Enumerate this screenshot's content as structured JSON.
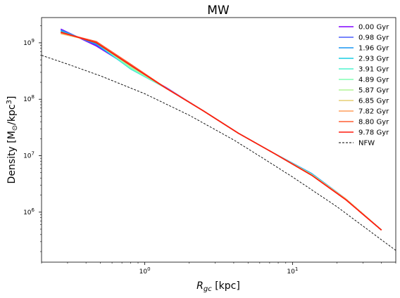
{
  "chart_data": {
    "type": "line",
    "title": "MW",
    "xlabel_main": "R",
    "xlabel_sub": "gc",
    "xlabel_unit": " [kpc]",
    "ylabel_main": "Density [M",
    "ylabel_sun": "⊙",
    "ylabel_mid": "/kpc",
    "ylabel_exp": "3",
    "ylabel_end": "]",
    "xscale": "log",
    "yscale": "log",
    "xlim": [
      0.2,
      50
    ],
    "ylim": [
      130000,
      2800000000
    ],
    "x_ticks": [
      {
        "value": 1,
        "base": "10",
        "exp": "0"
      },
      {
        "value": 10,
        "base": "10",
        "exp": "1"
      }
    ],
    "y_ticks": [
      {
        "value": 1000000,
        "base": "10",
        "exp": "6"
      },
      {
        "value": 10000000,
        "base": "10",
        "exp": "7"
      },
      {
        "value": 100000000,
        "base": "10",
        "exp": "8"
      },
      {
        "value": 1000000000,
        "base": "10",
        "exp": "9"
      }
    ],
    "legend_position": "top-right",
    "grid": false,
    "series": [
      {
        "name": "0.00 Gyr",
        "color": "#8000ff",
        "dash": "",
        "x": [
          0.27,
          0.47,
          0.8,
          1.4,
          2.5,
          4.3,
          7.5,
          13.5,
          23,
          40
        ],
        "y": [
          1750000000,
          880000000,
          370000000,
          160000000,
          62000000,
          25000000,
          11000000,
          4800000,
          1700000,
          480000
        ]
      },
      {
        "name": "0.98 Gyr",
        "color": "#4a5dfc",
        "dash": "",
        "x": [
          0.27,
          0.47,
          0.8,
          1.4,
          2.5,
          4.3,
          7.5,
          13.5,
          23,
          40
        ],
        "y": [
          1700000000,
          920000000,
          360000000,
          158000000,
          62000000,
          25000000,
          11000000,
          4800000,
          1700000,
          480000
        ]
      },
      {
        "name": "1.96 Gyr",
        "color": "#1996f3",
        "dash": "",
        "x": [
          0.27,
          0.47,
          0.8,
          1.4,
          2.5,
          4.3,
          7.5,
          13.5,
          23,
          40
        ],
        "y": [
          1650000000,
          950000000,
          350000000,
          157000000,
          62000000,
          25000000,
          11000000,
          4800000,
          1700000,
          480000
        ]
      },
      {
        "name": "2.93 Gyr",
        "color": "#18cde3",
        "dash": "",
        "x": [
          0.27,
          0.47,
          0.8,
          1.4,
          2.5,
          4.3,
          7.5,
          13.5,
          23,
          40
        ],
        "y": [
          1600000000,
          980000000,
          345000000,
          156000000,
          62000000,
          25000000,
          11000000,
          4700000,
          1700000,
          480000
        ]
      },
      {
        "name": "3.91 Gyr",
        "color": "#4df3ce",
        "dash": "",
        "x": [
          0.27,
          0.47,
          0.8,
          1.4,
          2.5,
          4.3,
          7.5,
          13.5,
          23,
          40
        ],
        "y": [
          1550000000,
          1000000000,
          350000000,
          156000000,
          62000000,
          25000000,
          11000000,
          4700000,
          1700000,
          480000
        ]
      },
      {
        "name": "4.89 Gyr",
        "color": "#80ffb4",
        "dash": "",
        "x": [
          0.27,
          0.47,
          0.8,
          1.4,
          2.5,
          4.3,
          7.5,
          13.5,
          23,
          40
        ],
        "y": [
          1500000000,
          1020000000,
          360000000,
          156000000,
          62000000,
          25000000,
          11000000,
          4600000,
          1700000,
          480000
        ]
      },
      {
        "name": "5.87 Gyr",
        "color": "#b2f396",
        "dash": "",
        "x": [
          0.27,
          0.47,
          0.8,
          1.4,
          2.5,
          4.3,
          7.5,
          13.5,
          23,
          40
        ],
        "y": [
          1480000000,
          1030000000,
          380000000,
          156000000,
          62000000,
          25000000,
          11000000,
          4600000,
          1700000,
          480000
        ]
      },
      {
        "name": "6.85 Gyr",
        "color": "#e6cd73",
        "dash": "",
        "x": [
          0.27,
          0.47,
          0.8,
          1.4,
          2.5,
          4.3,
          7.5,
          13.5,
          23,
          40
        ],
        "y": [
          1450000000,
          1040000000,
          400000000,
          156000000,
          62000000,
          25000000,
          11000000,
          4500000,
          1700000,
          480000
        ]
      },
      {
        "name": "7.82 Gyr",
        "color": "#ff9d5b",
        "dash": "",
        "x": [
          0.27,
          0.47,
          0.8,
          1.4,
          2.5,
          4.3,
          7.5,
          13.5,
          23,
          40
        ],
        "y": [
          1480000000,
          1050000000,
          410000000,
          156000000,
          62000000,
          25000000,
          11000000,
          4500000,
          1700000,
          480000
        ]
      },
      {
        "name": "8.80 Gyr",
        "color": "#ff5e34",
        "dash": "",
        "x": [
          0.27,
          0.47,
          0.8,
          1.4,
          2.5,
          4.3,
          7.5,
          13.5,
          23,
          40
        ],
        "y": [
          1520000000,
          1050000000,
          420000000,
          156000000,
          62000000,
          25000000,
          11000000,
          4500000,
          1650000,
          480000
        ]
      },
      {
        "name": "9.78 Gyr",
        "color": "#ff1a0e",
        "dash": "",
        "x": [
          0.27,
          0.47,
          0.8,
          1.4,
          2.5,
          4.3,
          7.5,
          13.5,
          23,
          40
        ],
        "y": [
          1550000000,
          1000000000,
          400000000,
          155000000,
          62000000,
          25000000,
          11000000,
          4500000,
          1650000,
          480000
        ]
      },
      {
        "name": "NFW",
        "color": "#000000",
        "dash": "3,2",
        "x": [
          0.2,
          0.3,
          0.5,
          1,
          2,
          4,
          6,
          10,
          20,
          35,
          50
        ],
        "y": [
          600000000,
          420000000,
          260000000,
          125000000,
          52000000,
          19000000,
          9800000,
          4200000,
          1250000,
          420000,
          210000
        ]
      }
    ]
  }
}
